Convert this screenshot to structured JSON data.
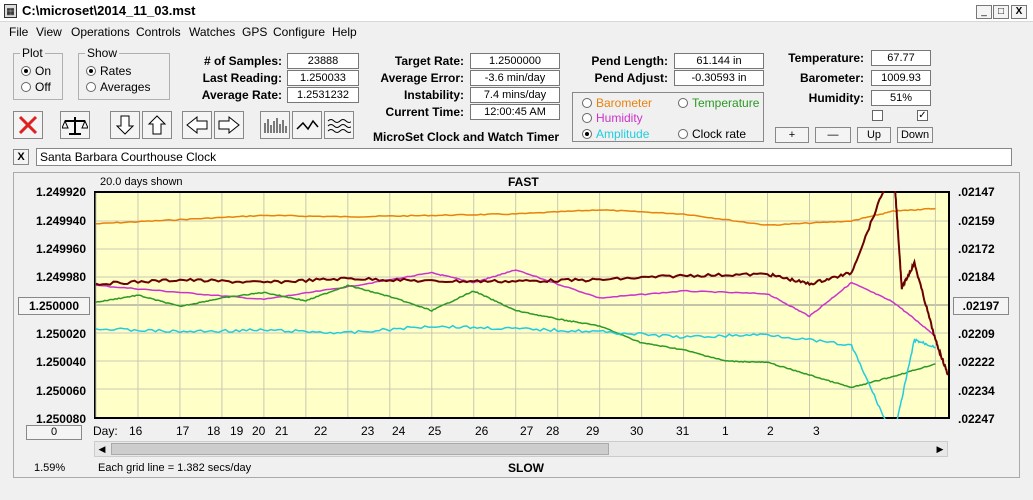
{
  "window": {
    "title": "C:\\microset\\2014_11_03.mst",
    "min": "_",
    "max": "□",
    "close": "X"
  },
  "menu": [
    "File",
    "View",
    "Operations",
    "Controls",
    "Watches",
    "GPS",
    "Configure",
    "Help"
  ],
  "plot_group": {
    "legend": "Plot",
    "on": "On",
    "off": "Off"
  },
  "show_group": {
    "legend": "Show",
    "rates": "Rates",
    "averages": "Averages"
  },
  "stats": {
    "samples_label": "# of Samples:",
    "samples": "23888",
    "last_label": "Last Reading:",
    "last": "1.250033",
    "avg_rate_label": "Average Rate:",
    "avg_rate": "1.2531232",
    "target_label": "Target Rate:",
    "target": "1.2500000",
    "avg_err_label": "Average Error:",
    "avg_err": "-3.6 min/day",
    "instab_label": "Instability:",
    "instab": "7.4 mins/day",
    "time_label": "Current Time:",
    "time": "12:00:45 AM",
    "pend_len_label": "Pend Length:",
    "pend_len": "61.144 in",
    "pend_adj_label": "Pend Adjust:",
    "pend_adj": "-0.30593 in",
    "temp_label": "Temperature:",
    "temp": "67.77",
    "baro_label": "Barometer:",
    "baro": "1009.93",
    "hum_label": "Humidity:",
    "hum": "51%"
  },
  "app_name": "MicroSet Clock and Watch Timer",
  "series_group": {
    "barometer": "Barometer",
    "temperature": "Temperature",
    "humidity": "Humidity",
    "amplitude": "Amplitude",
    "clockrate": "Clock rate"
  },
  "colors": {
    "barometer": "#e8820c",
    "temperature": "#2a9a22",
    "humidity": "#cc33cc",
    "amplitude": "#22ccdd",
    "rate": "#6a0000"
  },
  "side_buttons": {
    "plus": "+",
    "minus": "—",
    "up": "Up",
    "down": "Down"
  },
  "record": {
    "close": "X",
    "name": "Santa Barbara Courthouse Clock"
  },
  "chart_data": {
    "type": "line",
    "days_shown": "20.0 days shown",
    "top_label": "FAST",
    "bottom_label": "SLOW",
    "left_ticks": [
      "1.249920",
      "1.249940",
      "1.249960",
      "1.249980",
      "1.250000",
      "1.250020",
      "1.250040",
      "1.250060",
      "1.250080"
    ],
    "right_ticks": [
      ".02147",
      ".02159",
      ".02172",
      ".02184",
      ".02197",
      ".02209",
      ".02222",
      ".02234",
      ".02247"
    ],
    "day_label": "Day:",
    "days": [
      "16",
      "17",
      "18",
      "19",
      "20",
      "21",
      "22",
      "23",
      "24",
      "25",
      "26",
      "27",
      "28",
      "29",
      "30",
      "31",
      "1",
      "2",
      "3"
    ],
    "grid_note": "Each grid line = 1.382 secs/day",
    "zoom": "0",
    "percent": "1.59%",
    "series": [
      {
        "key": "barometer",
        "x": [
          0,
          2,
          4,
          6,
          8,
          10,
          12,
          14,
          16,
          18,
          19,
          20
        ],
        "y": [
          1.249942,
          1.249939,
          1.249936,
          1.249937,
          1.249936,
          1.249935,
          1.249932,
          1.249935,
          1.249943,
          1.24994,
          1.249933,
          1.249931
        ]
      },
      {
        "key": "humidity",
        "x": [
          0,
          2,
          4,
          6,
          8,
          9,
          10,
          12,
          14,
          16,
          17,
          18,
          19,
          20
        ],
        "y": [
          1.249986,
          1.249991,
          1.249996,
          1.249987,
          1.249977,
          1.249984,
          1.249975,
          1.249995,
          1.24999,
          1.249992,
          1.250008,
          1.249984,
          1.249998,
          1.250022
        ]
      },
      {
        "key": "rate",
        "x": [
          0,
          2,
          4,
          6,
          8,
          10,
          12,
          14,
          16,
          17,
          18,
          19,
          19.2,
          19.5,
          20,
          20.3
        ],
        "y": [
          1.249985,
          1.249982,
          1.249984,
          1.249981,
          1.249983,
          1.249983,
          1.249982,
          1.249979,
          1.249978,
          1.249985,
          1.249977,
          1.2499,
          1.249988,
          1.24997,
          1.250025,
          1.25005
        ]
      },
      {
        "key": "temperature",
        "x": [
          0,
          1,
          2,
          3,
          4,
          5,
          6,
          7,
          8,
          9,
          10,
          11,
          12,
          13,
          14,
          15,
          16,
          17,
          18,
          19,
          20
        ],
        "y": [
          1.249998,
          1.249993,
          1.250001,
          1.249995,
          1.249991,
          1.249997,
          1.249986,
          1.249994,
          1.250004,
          1.24999,
          1.250004,
          1.25001,
          1.250015,
          1.250027,
          1.250032,
          1.25004,
          1.250041,
          1.25005,
          1.250059,
          1.250051,
          1.250042
        ]
      },
      {
        "key": "amplitude",
        "x": [
          0,
          2,
          4,
          6,
          8,
          10,
          12,
          14,
          16,
          18,
          19,
          19.5,
          20
        ],
        "y": [
          1.250017,
          1.250019,
          1.250018,
          1.25002,
          1.250015,
          1.250017,
          1.250019,
          1.250023,
          1.250021,
          1.250029,
          1.250095,
          1.250025,
          1.25003
        ]
      }
    ],
    "ylim": [
      1.24992,
      1.25008
    ],
    "xlim": [
      0,
      20.3
    ]
  }
}
